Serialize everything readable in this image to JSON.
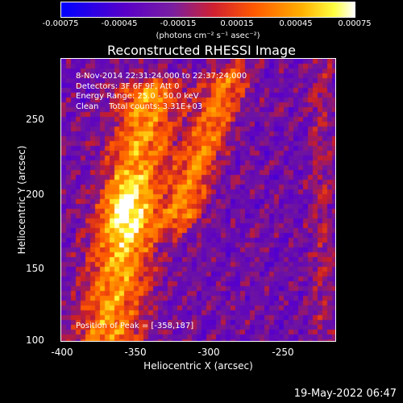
{
  "colorbar": {
    "ticks": [
      "-0.00075",
      "-0.00045",
      "-0.00015",
      "0.00015",
      "0.00045",
      "0.00075"
    ],
    "unit_label": "(photons cm⁻² s⁻¹ asec⁻²)",
    "range": [
      -0.00075,
      0.00075
    ]
  },
  "chart_data": {
    "type": "heatmap",
    "title": "Reconstructed RHESSI Image",
    "xlabel": "Heliocentric X (arcsec)",
    "ylabel": "Heliocentric Y (arcsec)",
    "xlim": [
      -400,
      -213
    ],
    "ylim": [
      98,
      288
    ],
    "x_ticks": [
      "-400",
      "-350",
      "-300",
      "-250"
    ],
    "y_ticks": [
      "250",
      "200",
      "150",
      "100"
    ],
    "annotations": {
      "time_range": "8-Nov-2014 22:31:24.000 to 22:37:24.000",
      "detectors": "Detectors: 3F 6F 9F, Att 0",
      "energy_range": "Energy Range: 25.0 - 50.0 keV",
      "method": "Clean    Total counts: 3.31E+03",
      "peak": "Position of Peak = [-358,187]"
    },
    "peak_position": [
      -358,
      187
    ],
    "bright_features": [
      {
        "name": "left-ridge",
        "x_center": -355,
        "y_range": [
          105,
          265
        ]
      },
      {
        "name": "right-ridge",
        "x_center": -305,
        "y_range": [
          185,
          275
        ]
      }
    ]
  },
  "footer": {
    "date": "19-May-2022 06:47"
  }
}
